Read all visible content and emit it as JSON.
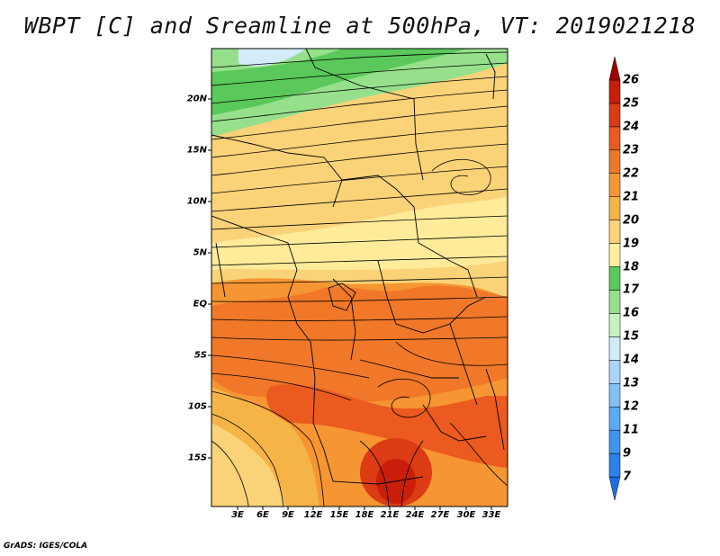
{
  "title": "WBPT [C] and Sreamline at 500hPa, VT: 2019021218",
  "footer": "GrADS: IGES/COLA",
  "latitude_labels": [
    "20N",
    "15N",
    "10N",
    "5N",
    "EQ",
    "5S",
    "10S",
    "15S"
  ],
  "longitude_labels": [
    "3E",
    "6E",
    "9E",
    "12E",
    "15E",
    "18E",
    "21E",
    "24E",
    "27E",
    "30E",
    "33E"
  ],
  "colorbar": {
    "levels": [
      "7",
      "9",
      "11",
      "12",
      "13",
      "14",
      "15",
      "16",
      "17",
      "18",
      "19",
      "20",
      "21",
      "22",
      "23",
      "24",
      "25",
      "26"
    ],
    "colors": [
      "#1e6ee0",
      "#2a82ec",
      "#3c96f0",
      "#5aaaf5",
      "#82c0f8",
      "#aad4fa",
      "#d2ecfa",
      "#c8f0c0",
      "#96e08c",
      "#5ac85a",
      "#fff0a0",
      "#fad278",
      "#f5b446",
      "#f59632",
      "#f07828",
      "#eb5a1e",
      "#dc3c14",
      "#c81e0a",
      "#a00000"
    ]
  },
  "colors": {
    "green_band": "#5ac85a",
    "light_green": "#96e08c",
    "warm_yellow": "#fad278",
    "orange": "#f07828",
    "red": "#c81e0a"
  }
}
